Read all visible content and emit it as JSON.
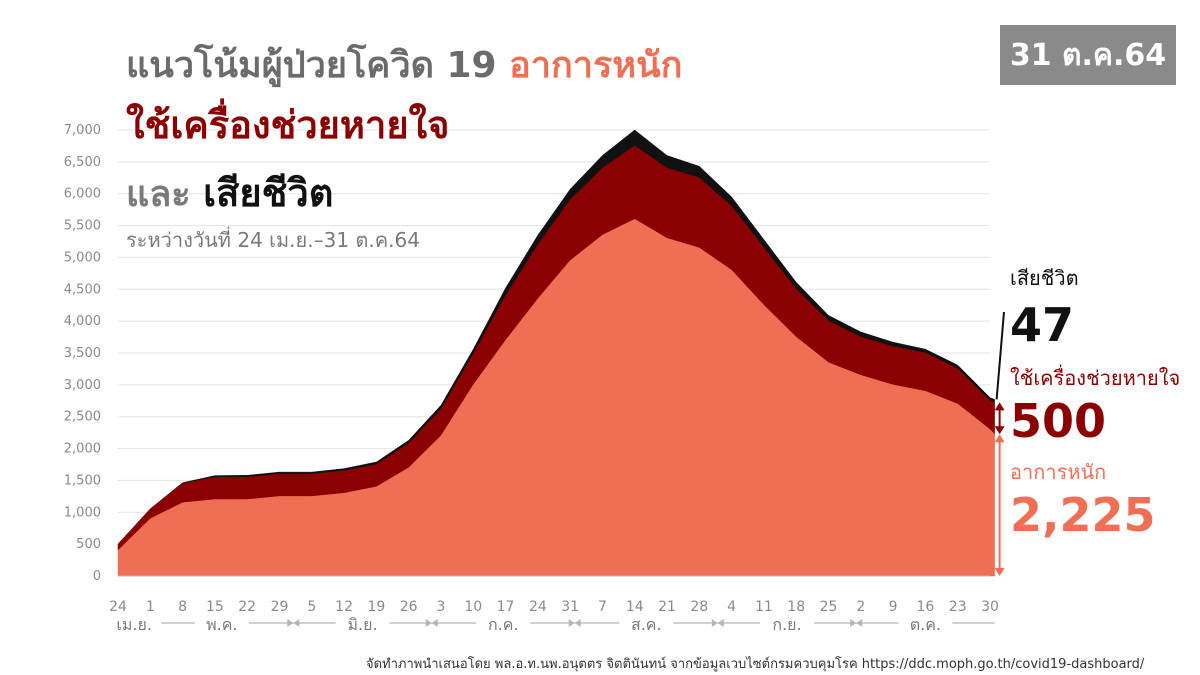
{
  "title": {
    "line1_prefix": "แนวโน้มผู้ป่วยโควิด 19 ",
    "line1_highlight": "อาการหนัก",
    "line2": "ใช้เครื่องช่วยหายใจ",
    "line3_prefix": "และ ",
    "line3_highlight": "เสียชีวิต",
    "subtitle": "ระหว่างวันที่ 24 เม.ย.–31 ต.ค.64"
  },
  "date_badge": "31 ต.ค.64",
  "callouts": {
    "death_label": "เสียชีวิต",
    "death_value": "47",
    "vent_label": "ใช้เครื่องช่วยหายใจ",
    "vent_value": "500",
    "severe_label": "อาการหนัก",
    "severe_value": "2,225"
  },
  "source": "จัดทำภาพนำเสนอโดย พล.อ.ท.นพ.อนุตตร จิตตินันทน์ จากข้อมูลเวบไซต์กรมควบคุมโรค https://ddc.moph.go.th/covid19-dashboard/",
  "colors": {
    "severe": "#ef6f55",
    "ventilator": "#8b0000",
    "death": "#111111",
    "grid": "#e3e3e3",
    "axis_text": "#8a8a8a"
  },
  "chart_data": {
    "type": "area",
    "stacked": true,
    "ylim": [
      0,
      7000
    ],
    "yticks": [
      0,
      500,
      1000,
      1500,
      2000,
      2500,
      3000,
      3500,
      4000,
      4500,
      5000,
      5500,
      6000,
      6500,
      7000
    ],
    "ytick_labels": [
      "0",
      "500",
      "1,000",
      "1,500",
      "2,000",
      "2,500",
      "3,000",
      "3,500",
      "4,000",
      "4,500",
      "5,000",
      "5,500",
      "6,000",
      "6,500",
      "7,000"
    ],
    "xtick_labels": [
      "24",
      "1",
      "8",
      "15",
      "22",
      "29",
      "5",
      "12",
      "19",
      "26",
      "3",
      "10",
      "17",
      "24",
      "31",
      "7",
      "14",
      "21",
      "28",
      "4",
      "11",
      "18",
      "25",
      "2",
      "9",
      "16",
      "23",
      "30"
    ],
    "month_labels": [
      "เม.ย.",
      "พ.ค.",
      "มิ.ย.",
      "ก.ค.",
      "ส.ค.",
      "ก.ย.",
      "ต.ค."
    ],
    "x": [
      "2021-04-24",
      "2021-05-01",
      "2021-05-08",
      "2021-05-15",
      "2021-05-22",
      "2021-05-29",
      "2021-06-05",
      "2021-06-12",
      "2021-06-19",
      "2021-06-26",
      "2021-07-03",
      "2021-07-10",
      "2021-07-17",
      "2021-07-24",
      "2021-07-31",
      "2021-08-07",
      "2021-08-14",
      "2021-08-21",
      "2021-08-28",
      "2021-09-04",
      "2021-09-11",
      "2021-09-18",
      "2021-09-25",
      "2021-10-02",
      "2021-10-09",
      "2021-10-16",
      "2021-10-23",
      "2021-10-30",
      "2021-10-31"
    ],
    "series": [
      {
        "name": "อาการหนัก",
        "values": [
          400,
          900,
          1150,
          1200,
          1200,
          1250,
          1250,
          1300,
          1400,
          1700,
          2200,
          3000,
          3700,
          4350,
          4950,
          5350,
          5600,
          5300,
          5150,
          4800,
          4250,
          3750,
          3350,
          3150,
          3000,
          2900,
          2700,
          2300,
          2225
        ]
      },
      {
        "name": "ใช้เครื่องช่วยหายใจ",
        "values": [
          100,
          150,
          300,
          350,
          350,
          350,
          350,
          350,
          350,
          380,
          420,
          480,
          700,
          850,
          950,
          1050,
          1150,
          1100,
          1100,
          1000,
          900,
          750,
          650,
          600,
          600,
          600,
          550,
          450,
          500
        ]
      },
      {
        "name": "เสียชีวิต",
        "values": [
          3,
          5,
          15,
          25,
          30,
          30,
          30,
          35,
          40,
          50,
          60,
          80,
          120,
          150,
          170,
          200,
          250,
          200,
          180,
          150,
          130,
          110,
          90,
          80,
          70,
          60,
          60,
          50,
          47
        ]
      }
    ]
  }
}
